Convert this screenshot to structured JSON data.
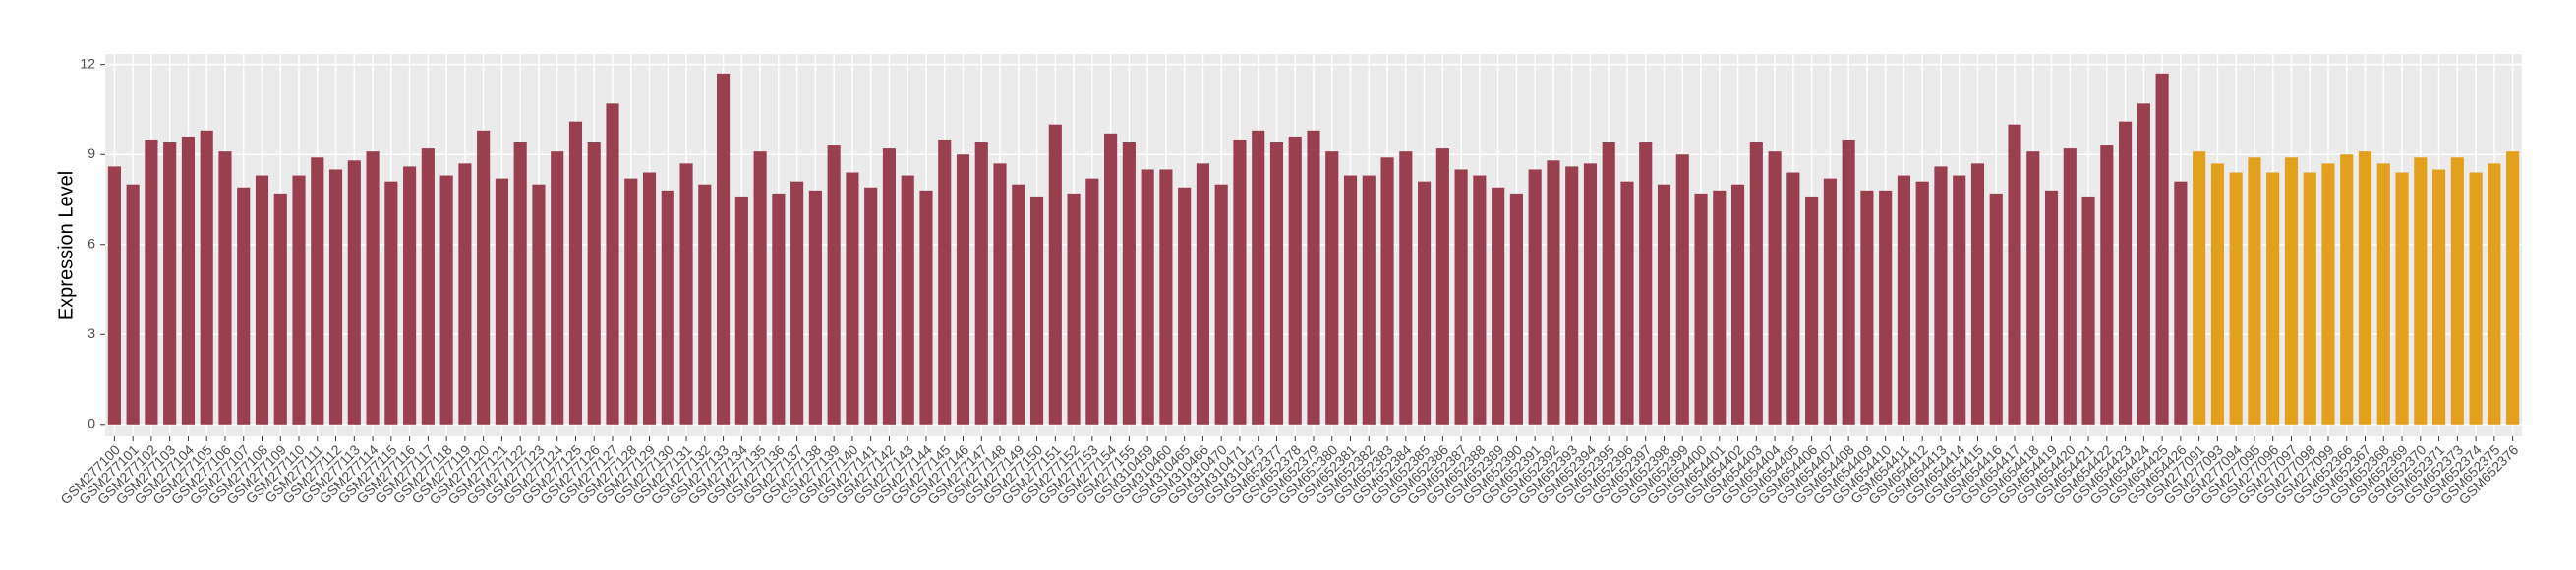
{
  "chart_data": {
    "type": "bar",
    "y_label": "Expression Level",
    "categories": [
      "GSM277100",
      "GSM277101",
      "GSM277102",
      "GSM277103",
      "GSM277104",
      "GSM277105",
      "GSM277106",
      "GSM277107",
      "GSM277108",
      "GSM277109",
      "GSM277110",
      "GSM277111",
      "GSM277112",
      "GSM277113",
      "GSM277114",
      "GSM277115",
      "GSM277116",
      "GSM277117",
      "GSM277118",
      "GSM277119",
      "GSM277120",
      "GSM277121",
      "GSM277122",
      "GSM277123",
      "GSM277124",
      "GSM277125",
      "GSM277126",
      "GSM277127",
      "GSM277128",
      "GSM277129",
      "GSM277130",
      "GSM277131",
      "GSM277132",
      "GSM277133",
      "GSM277134",
      "GSM277135",
      "GSM277136",
      "GSM277137",
      "GSM277138",
      "GSM277139",
      "GSM277140",
      "GSM277141",
      "GSM277142",
      "GSM277143",
      "GSM277144",
      "GSM277145",
      "GSM277146",
      "GSM277147",
      "GSM277148",
      "GSM277149",
      "GSM277150",
      "GSM277151",
      "GSM277152",
      "GSM277153",
      "GSM277154",
      "GSM277155",
      "GSM310459",
      "GSM310460",
      "GSM310465",
      "GSM310466",
      "GSM310470",
      "GSM310471",
      "GSM310473",
      "GSM652377",
      "GSM652378",
      "GSM652379",
      "GSM652380",
      "GSM652381",
      "GSM652382",
      "GSM652383",
      "GSM652384",
      "GSM652385",
      "GSM652386",
      "GSM652387",
      "GSM652388",
      "GSM652389",
      "GSM652390",
      "GSM652391",
      "GSM652392",
      "GSM652393",
      "GSM652394",
      "GSM652395",
      "GSM652396",
      "GSM652397",
      "GSM652398",
      "GSM652399",
      "GSM654400",
      "GSM654401",
      "GSM654402",
      "GSM654403",
      "GSM654404",
      "GSM654405",
      "GSM654406",
      "GSM654407",
      "GSM654408",
      "GSM654409",
      "GSM654410",
      "GSM654411",
      "GSM654412",
      "GSM654413",
      "GSM654414",
      "GSM654415",
      "GSM654416",
      "GSM654417",
      "GSM654418",
      "GSM654419",
      "GSM654420",
      "GSM654421",
      "GSM654422",
      "GSM654423",
      "GSM654424",
      "GSM654425",
      "GSM654426",
      "GSM277091",
      "GSM277093",
      "GSM277094",
      "GSM277095",
      "GSM277096",
      "GSM277097",
      "GSM277098",
      "GSM277099",
      "GSM652366",
      "GSM652367",
      "GSM652368",
      "GSM652369",
      "GSM652370",
      "GSM652371",
      "GSM652373",
      "GSM652374",
      "GSM652375",
      "GSM652376"
    ],
    "values": [
      8.6,
      8.0,
      9.5,
      9.4,
      9.6,
      9.8,
      9.1,
      7.9,
      8.3,
      7.7,
      8.3,
      8.9,
      8.5,
      8.8,
      9.1,
      8.1,
      8.6,
      9.2,
      8.3,
      8.7,
      9.8,
      8.2,
      9.4,
      8.0,
      9.1,
      10.1,
      9.4,
      10.7,
      8.2,
      8.4,
      7.8,
      8.7,
      8.0,
      11.7,
      7.6,
      9.1,
      7.7,
      8.1,
      7.8,
      9.3,
      8.4,
      7.9,
      9.2,
      8.3,
      7.8,
      9.5,
      9.0,
      9.4,
      8.7,
      8.0,
      7.6,
      10.0,
      7.7,
      8.2,
      9.7,
      9.4,
      8.5,
      8.5,
      7.9,
      8.7,
      8.0,
      9.5,
      9.8,
      9.4,
      9.6,
      9.8,
      9.1,
      8.3,
      8.3,
      8.9,
      9.1,
      8.1,
      9.2,
      8.5,
      8.3,
      7.9,
      7.7,
      8.5,
      8.8,
      8.6,
      8.7,
      9.4,
      8.1,
      9.4,
      8.0,
      9.0,
      7.7,
      7.8,
      8.0,
      9.4,
      9.1,
      8.4,
      7.6,
      8.2,
      9.5,
      7.8,
      7.8,
      8.3,
      8.1,
      8.6,
      8.3,
      8.7,
      7.7,
      10.0,
      9.1,
      7.8,
      9.2,
      7.6,
      9.3,
      10.1,
      10.7,
      11.7,
      8.1,
      9.1,
      8.7,
      8.4,
      8.9,
      8.4,
      8.9,
      8.4,
      8.7,
      9.0,
      9.1,
      8.7,
      8.4,
      8.9,
      8.5,
      8.9,
      8.4,
      8.7,
      9.1
    ],
    "colors": [
      "#9a3f50",
      "#9a3f50",
      "#9a3f50",
      "#9a3f50",
      "#9a3f50",
      "#9a3f50",
      "#9a3f50",
      "#9a3f50",
      "#9a3f50",
      "#9a3f50",
      "#9a3f50",
      "#9a3f50",
      "#9a3f50",
      "#9a3f50",
      "#9a3f50",
      "#9a3f50",
      "#9a3f50",
      "#9a3f50",
      "#9a3f50",
      "#9a3f50",
      "#9a3f50",
      "#9a3f50",
      "#9a3f50",
      "#9a3f50",
      "#9a3f50",
      "#9a3f50",
      "#9a3f50",
      "#9a3f50",
      "#9a3f50",
      "#9a3f50",
      "#9a3f50",
      "#9a3f50",
      "#9a3f50",
      "#9a3f50",
      "#9a3f50",
      "#9a3f50",
      "#9a3f50",
      "#9a3f50",
      "#9a3f50",
      "#9a3f50",
      "#9a3f50",
      "#9a3f50",
      "#9a3f50",
      "#9a3f50",
      "#9a3f50",
      "#9a3f50",
      "#9a3f50",
      "#9a3f50",
      "#9a3f50",
      "#9a3f50",
      "#9a3f50",
      "#9a3f50",
      "#9a3f50",
      "#9a3f50",
      "#9a3f50",
      "#9a3f50",
      "#9a3f50",
      "#9a3f50",
      "#9a3f50",
      "#9a3f50",
      "#9a3f50",
      "#9a3f50",
      "#9a3f50",
      "#9a3f50",
      "#9a3f50",
      "#9a3f50",
      "#9a3f50",
      "#9a3f50",
      "#9a3f50",
      "#9a3f50",
      "#9a3f50",
      "#9a3f50",
      "#9a3f50",
      "#9a3f50",
      "#9a3f50",
      "#9a3f50",
      "#9a3f50",
      "#9a3f50",
      "#9a3f50",
      "#9a3f50",
      "#9a3f50",
      "#9a3f50",
      "#9a3f50",
      "#9a3f50",
      "#9a3f50",
      "#9a3f50",
      "#9a3f50",
      "#9a3f50",
      "#9a3f50",
      "#9a3f50",
      "#9a3f50",
      "#9a3f50",
      "#9a3f50",
      "#9a3f50",
      "#9a3f50",
      "#9a3f50",
      "#9a3f50",
      "#9a3f50",
      "#9a3f50",
      "#9a3f50",
      "#9a3f50",
      "#9a3f50",
      "#9a3f50",
      "#9a3f50",
      "#9a3f50",
      "#9a3f50",
      "#9a3f50",
      "#9a3f50",
      "#9a3f50",
      "#9a3f50",
      "#9a3f50",
      "#9a3f50",
      "#9a3f50",
      "#e3a01c",
      "#e3a01c",
      "#e3a01c",
      "#e3a01c",
      "#e3a01c",
      "#e3a01c",
      "#e3a01c",
      "#e3a01c",
      "#e3a01c",
      "#e3a01c",
      "#e3a01c",
      "#e3a01c",
      "#e3a01c",
      "#e3a01c",
      "#e3a01c",
      "#e3a01c",
      "#e3a01c",
      "#e3a01c"
    ],
    "ylim": [
      -0.4,
      12.35
    ],
    "yticks": [
      0,
      3,
      6,
      9,
      12
    ],
    "grid": true
  }
}
